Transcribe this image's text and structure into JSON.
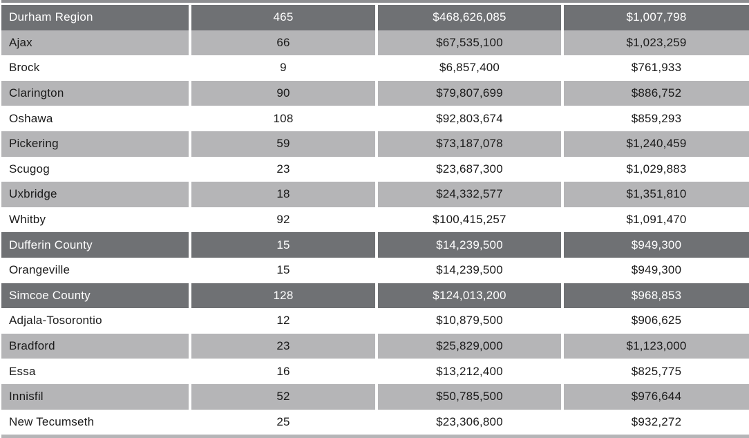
{
  "table": {
    "column_keys": [
      "name",
      "count",
      "total",
      "average"
    ],
    "rows": [
      {
        "type": "region",
        "name": "Durham Region",
        "count": "465",
        "total": "$468,626,085",
        "average": "$1,007,798"
      },
      {
        "type": "shaded",
        "name": "Ajax",
        "count": "66",
        "total": "$67,535,100",
        "average": "$1,023,259"
      },
      {
        "type": "plain",
        "name": "Brock",
        "count": "9",
        "total": "$6,857,400",
        "average": "$761,933"
      },
      {
        "type": "shaded",
        "name": "Clarington",
        "count": "90",
        "total": "$79,807,699",
        "average": "$886,752"
      },
      {
        "type": "plain",
        "name": "Oshawa",
        "count": "108",
        "total": "$92,803,674",
        "average": "$859,293"
      },
      {
        "type": "shaded",
        "name": "Pickering",
        "count": "59",
        "total": "$73,187,078",
        "average": "$1,240,459"
      },
      {
        "type": "plain",
        "name": "Scugog",
        "count": "23",
        "total": "$23,687,300",
        "average": "$1,029,883"
      },
      {
        "type": "shaded",
        "name": "Uxbridge",
        "count": "18",
        "total": "$24,332,577",
        "average": "$1,351,810"
      },
      {
        "type": "plain",
        "name": "Whitby",
        "count": "92",
        "total": "$100,415,257",
        "average": "$1,091,470"
      },
      {
        "type": "region",
        "name": "Dufferin County",
        "count": "15",
        "total": "$14,239,500",
        "average": "$949,300"
      },
      {
        "type": "plain",
        "name": "Orangeville",
        "count": "15",
        "total": "$14,239,500",
        "average": "$949,300"
      },
      {
        "type": "region",
        "name": "Simcoe County",
        "count": "128",
        "total": "$124,013,200",
        "average": "$968,853"
      },
      {
        "type": "plain",
        "name": "Adjala-Tosorontio",
        "count": "12",
        "total": "$10,879,500",
        "average": "$906,625"
      },
      {
        "type": "shaded",
        "name": "Bradford",
        "count": "23",
        "total": "$25,829,000",
        "average": "$1,123,000"
      },
      {
        "type": "plain",
        "name": "Essa",
        "count": "16",
        "total": "$13,212,400",
        "average": "$825,775"
      },
      {
        "type": "shaded",
        "name": "Innisfil",
        "count": "52",
        "total": "$50,785,500",
        "average": "$976,644"
      },
      {
        "type": "plain",
        "name": "New Tecumseth",
        "count": "25",
        "total": "$23,306,800",
        "average": "$932,272"
      }
    ]
  },
  "colors": {
    "region_row_bg": "#6f7174",
    "region_row_text": "#ffffff",
    "shaded_row_bg": "#b5b5b7",
    "plain_row_bg": "#ffffff",
    "row_text": "#1a1a1a",
    "column_separator": "#ffffff",
    "top_edge_strip": "#8d8e91",
    "bottom_edge_strip": "#b5b5b7"
  }
}
